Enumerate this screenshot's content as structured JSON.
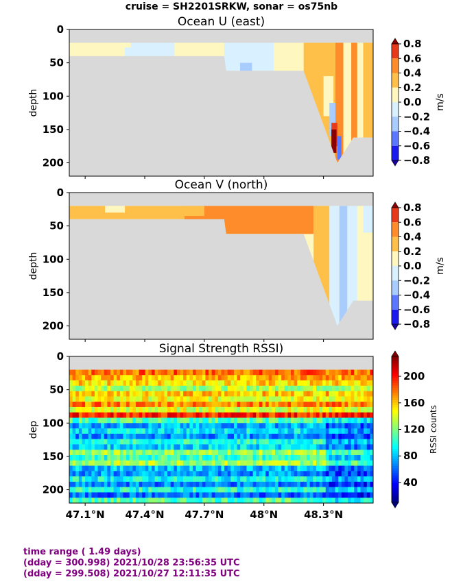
{
  "suptitle": "cruise = SH2201SRKW,  sonar = os75nb",
  "footer": {
    "line1": "time range ( 1.49 days)",
    "line2": "(dday = 300.998) 2021/10/28 23:56:35 UTC",
    "line3": "(dday = 299.508) 2021/10/27 12:11:35 UTC"
  },
  "colors": {
    "nodata": "#d9d9d9",
    "text": "#000000",
    "footer": "#800080"
  },
  "chart_data": [
    {
      "type": "heatmap",
      "title": "Ocean U (east)",
      "ylabel": "depth",
      "colorbar_label": "m/s",
      "xlim": [
        47.02,
        48.55
      ],
      "ylim": [
        220,
        0
      ],
      "xticks": [
        47.1,
        47.4,
        47.7,
        48.0,
        48.3
      ],
      "xtick_labels": [
        "47.1°N",
        "47.4°N",
        "47.7°N",
        "48°N",
        "48.3°N"
      ],
      "show_xtick_labels": false,
      "yticks": [
        0,
        50,
        100,
        150,
        200
      ],
      "ytick_labels": [
        "0",
        "50",
        "100",
        "150",
        "200"
      ],
      "colorbar": {
        "kind": "discrete",
        "levels": [
          -0.8,
          -0.6,
          -0.4,
          -0.2,
          0.0,
          0.2,
          0.4,
          0.6,
          0.8
        ],
        "ticks": [
          "0.8",
          "0.6",
          "0.4",
          "0.2",
          "0.0",
          "−0.2",
          "−0.4",
          "−0.6",
          "−0.8"
        ],
        "colors": [
          "#1a1af0",
          "#5a78ff",
          "#a9ccff",
          "#d8f0ff",
          "#fff7c0",
          "#ffc04a",
          "#ff8c2a",
          "#e8391a"
        ],
        "under": "#1a00a0",
        "over": "#8b0000"
      },
      "data_top_depth": 20,
      "bottom_depth_profile": [
        [
          47.02,
          40
        ],
        [
          47.8,
          40
        ],
        [
          47.81,
          62
        ],
        [
          48.2,
          62
        ],
        [
          48.37,
          200
        ],
        [
          48.45,
          162
        ],
        [
          48.55,
          162
        ]
      ],
      "regions": [
        {
          "x0": 47.02,
          "x1": 47.3,
          "y0": 20,
          "y1": 40,
          "value": 0.05
        },
        {
          "x0": 47.3,
          "x1": 47.55,
          "y0": 20,
          "y1": 40,
          "value": -0.1
        },
        {
          "x0": 47.28,
          "x1": 47.33,
          "y0": 20,
          "y1": 27,
          "value": 0.1
        },
        {
          "x0": 47.55,
          "x1": 47.8,
          "y0": 20,
          "y1": 40,
          "value": 0.05
        },
        {
          "x0": 47.8,
          "x1": 48.05,
          "y0": 20,
          "y1": 62,
          "value": -0.1
        },
        {
          "x0": 47.88,
          "x1": 47.94,
          "y0": 50,
          "y1": 62,
          "value": -0.3
        },
        {
          "x0": 48.05,
          "x1": 48.2,
          "y0": 20,
          "y1": 62,
          "value": 0.1
        },
        {
          "x0": 48.2,
          "x1": 48.55,
          "y0": 20,
          "y1": 200,
          "value": 0.3
        },
        {
          "x0": 48.3,
          "x1": 48.35,
          "y0": 70,
          "y1": 130,
          "value": 0.1
        },
        {
          "x0": 48.33,
          "x1": 48.38,
          "y0": 110,
          "y1": 160,
          "value": -0.3
        },
        {
          "x0": 48.36,
          "x1": 48.4,
          "y0": 20,
          "y1": 200,
          "value": 0.5
        },
        {
          "x0": 48.4,
          "x1": 48.44,
          "y0": 20,
          "y1": 200,
          "value": 0.1
        },
        {
          "x0": 48.44,
          "x1": 48.47,
          "y0": 20,
          "y1": 200,
          "value": 0.5
        },
        {
          "x0": 48.47,
          "x1": 48.5,
          "y0": 20,
          "y1": 170,
          "value": 0.1
        },
        {
          "x0": 48.5,
          "x1": 48.55,
          "y0": 20,
          "y1": 162,
          "value": 0.3
        },
        {
          "x0": 48.34,
          "x1": 48.37,
          "y0": 140,
          "y1": 175,
          "value": 0.7
        },
        {
          "x0": 48.34,
          "x1": 48.365,
          "y0": 150,
          "y1": 185,
          "value": 0.9
        },
        {
          "x0": 48.37,
          "x1": 48.39,
          "y0": 160,
          "y1": 195,
          "value": -0.5
        }
      ]
    },
    {
      "type": "heatmap",
      "title": "Ocean V (north)",
      "ylabel": "depth",
      "colorbar_label": "m/s",
      "xlim": [
        47.02,
        48.55
      ],
      "ylim": [
        220,
        0
      ],
      "xticks": [
        47.1,
        47.4,
        47.7,
        48.0,
        48.3
      ],
      "xtick_labels": [
        "47.1°N",
        "47.4°N",
        "47.7°N",
        "48°N",
        "48.3°N"
      ],
      "show_xtick_labels": false,
      "yticks": [
        0,
        50,
        100,
        150,
        200
      ],
      "ytick_labels": [
        "0",
        "50",
        "100",
        "150",
        "200"
      ],
      "colorbar": {
        "kind": "discrete",
        "levels": [
          -0.8,
          -0.6,
          -0.4,
          -0.2,
          0.0,
          0.2,
          0.4,
          0.6,
          0.8
        ],
        "ticks": [
          "0.8",
          "0.6",
          "0.4",
          "0.2",
          "0.0",
          "−0.2",
          "−0.4",
          "−0.6",
          "−0.8"
        ],
        "colors": [
          "#1a1af0",
          "#5a78ff",
          "#a9ccff",
          "#d8f0ff",
          "#fff7c0",
          "#ffc04a",
          "#ff8c2a",
          "#e8391a"
        ],
        "under": "#1a00a0",
        "over": "#8b0000"
      },
      "data_top_depth": 20,
      "bottom_depth_profile": [
        [
          47.02,
          40
        ],
        [
          47.8,
          40
        ],
        [
          47.81,
          62
        ],
        [
          48.2,
          62
        ],
        [
          48.37,
          200
        ],
        [
          48.45,
          162
        ],
        [
          48.55,
          162
        ]
      ],
      "regions": [
        {
          "x0": 47.02,
          "x1": 47.6,
          "y0": 20,
          "y1": 40,
          "value": 0.3
        },
        {
          "x0": 47.2,
          "x1": 47.3,
          "y0": 20,
          "y1": 30,
          "value": 0.1
        },
        {
          "x0": 47.6,
          "x1": 48.25,
          "y0": 20,
          "y1": 62,
          "value": 0.5
        },
        {
          "x0": 47.6,
          "x1": 47.7,
          "y0": 20,
          "y1": 35,
          "value": 0.3
        },
        {
          "x0": 48.25,
          "x1": 48.33,
          "y0": 20,
          "y1": 200,
          "value": 0.3
        },
        {
          "x0": 48.33,
          "x1": 48.38,
          "y0": 20,
          "y1": 200,
          "value": -0.1
        },
        {
          "x0": 48.38,
          "x1": 48.42,
          "y0": 20,
          "y1": 200,
          "value": -0.3
        },
        {
          "x0": 48.42,
          "x1": 48.47,
          "y0": 20,
          "y1": 200,
          "value": -0.1
        },
        {
          "x0": 48.47,
          "x1": 48.55,
          "y0": 20,
          "y1": 162,
          "value": 0.05
        },
        {
          "x0": 48.5,
          "x1": 48.55,
          "y0": 20,
          "y1": 60,
          "value": -0.1
        }
      ]
    },
    {
      "type": "heatmap",
      "title": "Signal Strength RSSI)",
      "ylabel": "dep",
      "colorbar_label": "RSSI counts",
      "xlim": [
        47.02,
        48.55
      ],
      "ylim": [
        220,
        0
      ],
      "xticks": [
        47.1,
        47.4,
        47.7,
        48.0,
        48.3
      ],
      "xtick_labels": [
        "47.1°N",
        "47.4°N",
        "47.7°N",
        "48°N",
        "48.3°N"
      ],
      "show_xtick_labels": true,
      "yticks": [
        0,
        50,
        100,
        150,
        200
      ],
      "ytick_labels": [
        "0",
        "50",
        "100",
        "150",
        "200"
      ],
      "colorbar": {
        "kind": "continuous",
        "vmin": 10,
        "vmax": 230,
        "tick_values": [
          200,
          160,
          120,
          80,
          40
        ],
        "ticks": [
          "200",
          "160",
          "120",
          "80",
          "40"
        ]
      },
      "data_top_depth": 20,
      "rows_depth": [
        28,
        36,
        44,
        52,
        60,
        68,
        76,
        84,
        92,
        100,
        108,
        116,
        124,
        132,
        140,
        148,
        156,
        164,
        172,
        180,
        188,
        196,
        204,
        212,
        220
      ],
      "row_mean_rssi": [
        180,
        165,
        155,
        130,
        160,
        145,
        175,
        140,
        195,
        110,
        75,
        90,
        70,
        100,
        85,
        125,
        105,
        130,
        80,
        70,
        95,
        65,
        100,
        60,
        110
      ],
      "column_count": 96
    }
  ]
}
